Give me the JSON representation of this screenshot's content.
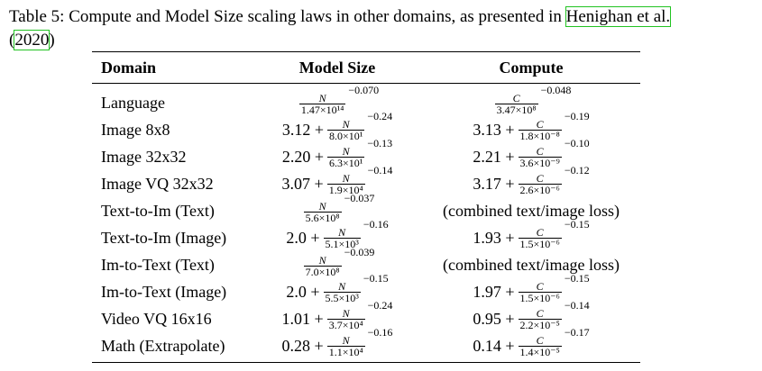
{
  "caption": {
    "prefix": "Table 5: Compute and Model Size scaling laws in other domains, as presented in ",
    "cite_name": "Henighan et al.",
    "cite_year": "2020",
    "open_paren": "(",
    "close_paren": ")"
  },
  "headers": {
    "domain": "Domain",
    "model_size": "Model Size",
    "compute": "Compute"
  },
  "rows": [
    {
      "domain": "Language",
      "ms": {
        "pre": "",
        "num": "N",
        "den": "1.47×10¹⁴",
        "exp": "−0.070"
      },
      "cp": {
        "pre": "",
        "num": "C",
        "den": "3.47×10⁸",
        "exp": "−0.048"
      }
    },
    {
      "domain": "Image 8x8",
      "ms": {
        "pre": "3.12 +",
        "num": "N",
        "den": "8.0×10¹",
        "exp": "−0.24"
      },
      "cp": {
        "pre": "3.13 +",
        "num": "C",
        "den": "1.8×10⁻⁸",
        "exp": "−0.19"
      }
    },
    {
      "domain": "Image 32x32",
      "ms": {
        "pre": "2.20 +",
        "num": "N",
        "den": "6.3×10¹",
        "exp": "−0.13"
      },
      "cp": {
        "pre": "2.21 +",
        "num": "C",
        "den": "3.6×10⁻⁹",
        "exp": "−0.10"
      }
    },
    {
      "domain": "Image VQ 32x32",
      "ms": {
        "pre": "3.07 +",
        "num": "N",
        "den": "1.9×10⁴",
        "exp": "−0.14"
      },
      "cp": {
        "pre": "3.17 +",
        "num": "C",
        "den": "2.6×10⁻⁶",
        "exp": "−0.12"
      }
    },
    {
      "domain": "Text-to-Im (Text)",
      "ms": {
        "pre": "",
        "num": "N",
        "den": "5.6×10⁸",
        "exp": "−0.037"
      },
      "cp_text": "(combined text/image loss)"
    },
    {
      "domain": "Text-to-Im (Image)",
      "ms": {
        "pre": "2.0 +",
        "num": "N",
        "den": "5.1×10³",
        "exp": "−0.16"
      },
      "cp": {
        "pre": "1.93 +",
        "num": "C",
        "den": "1.5×10⁻⁶",
        "exp": "−0.15"
      }
    },
    {
      "domain": "Im-to-Text (Text)",
      "ms": {
        "pre": "",
        "num": "N",
        "den": "7.0×10⁸",
        "exp": "−0.039"
      },
      "cp_text": "(combined text/image loss)"
    },
    {
      "domain": "Im-to-Text (Image)",
      "ms": {
        "pre": "2.0 +",
        "num": "N",
        "den": "5.5×10³",
        "exp": "−0.15"
      },
      "cp": {
        "pre": "1.97 +",
        "num": "C",
        "den": "1.5×10⁻⁶",
        "exp": "−0.15"
      }
    },
    {
      "domain": "Video VQ 16x16",
      "ms": {
        "pre": "1.01 +",
        "num": "N",
        "den": "3.7×10⁴",
        "exp": "−0.24"
      },
      "cp": {
        "pre": "0.95 +",
        "num": "C",
        "den": "2.2×10⁻⁵",
        "exp": "−0.14"
      }
    },
    {
      "domain": "Math (Extrapolate)",
      "ms": {
        "pre": "0.28 +",
        "num": "N",
        "den": "1.1×10⁴",
        "exp": "−0.16"
      },
      "cp": {
        "pre": "0.14 +",
        "num": "C",
        "den": "1.4×10⁻⁵",
        "exp": "−0.17"
      }
    }
  ]
}
